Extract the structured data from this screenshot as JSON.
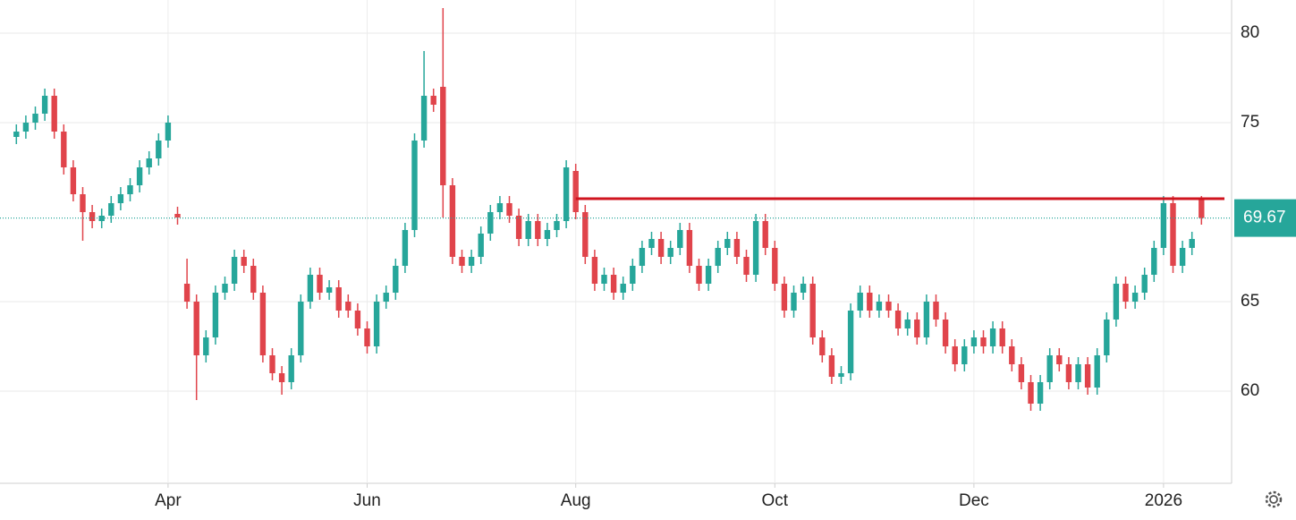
{
  "chart_data": {
    "type": "candlestick",
    "categories": [
      null,
      null,
      null,
      null,
      null,
      null,
      null,
      null,
      null,
      null,
      null,
      null,
      null,
      null,
      null,
      null,
      "Apr",
      null,
      null,
      null,
      null,
      null,
      null,
      null,
      null,
      null,
      null,
      null,
      null,
      null,
      null,
      null,
      null,
      null,
      null,
      null,
      null,
      "Jun",
      null,
      null,
      null,
      null,
      null,
      null,
      null,
      null,
      null,
      null,
      null,
      null,
      null,
      null,
      null,
      null,
      null,
      null,
      null,
      null,
      null,
      "Aug",
      null,
      null,
      null,
      null,
      null,
      null,
      null,
      null,
      null,
      null,
      null,
      null,
      null,
      null,
      null,
      null,
      null,
      null,
      null,
      null,
      "Oct",
      null,
      null,
      null,
      null,
      null,
      null,
      null,
      null,
      null,
      null,
      null,
      null,
      null,
      null,
      null,
      null,
      null,
      null,
      null,
      null,
      "Dec",
      null,
      null,
      null,
      null,
      null,
      null,
      null,
      null,
      null,
      null,
      null,
      null,
      null,
      null,
      null,
      null,
      null,
      null,
      null,
      "2026",
      null,
      null,
      null,
      null
    ],
    "open": [
      74.2,
      74.5,
      75,
      75.5,
      76.5,
      74.5,
      72.5,
      71,
      70,
      69.5,
      69.8,
      70.5,
      71,
      71.5,
      72.5,
      73,
      74,
      69.9,
      66,
      65,
      62,
      63,
      65.5,
      66,
      67.5,
      67,
      65.5,
      62,
      61,
      60.5,
      62,
      65,
      66.5,
      65.5,
      65.8,
      65,
      64.5,
      63.5,
      62.5,
      65,
      65.5,
      67,
      69,
      74,
      76.5,
      77,
      71.5,
      67.5,
      67,
      67.5,
      68.8,
      70,
      70.5,
      69.8,
      68.5,
      69.5,
      68.5,
      69,
      69.5,
      72.3,
      70,
      67.5,
      66,
      66.5,
      65.5,
      66,
      67,
      68,
      68.5,
      67.5,
      68,
      69,
      67,
      66,
      67,
      68,
      68.5,
      67.5,
      66.5,
      69.5,
      68,
      66,
      64.5,
      65.5,
      66,
      63,
      62,
      60.8,
      61,
      64.5,
      65.5,
      64.5,
      65,
      64.5,
      63.5,
      64,
      63,
      65,
      64,
      62.5,
      61.5,
      62.5,
      63,
      62.5,
      63.5,
      62.5,
      61.5,
      60.5,
      59.3,
      60.5,
      62,
      61.5,
      60.5,
      61.5,
      60.2,
      62,
      64,
      66,
      65,
      65.5,
      66.5,
      68,
      70.5,
      67,
      68,
      70.8
    ],
    "high": [
      74.9,
      75.4,
      75.9,
      76.9,
      76.9,
      74.9,
      72.9,
      71.4,
      70.4,
      70.2,
      70.9,
      71.4,
      71.9,
      72.9,
      73.4,
      74.4,
      75.4,
      70.3,
      67.4,
      65.4,
      63.4,
      65.9,
      66.4,
      67.9,
      67.9,
      67.4,
      65.9,
      62.4,
      61.4,
      62.4,
      65.4,
      66.9,
      66.9,
      66.2,
      66.2,
      65.4,
      64.9,
      63.9,
      65.4,
      65.9,
      67.4,
      69.4,
      74.4,
      79,
      76.9,
      81.4,
      71.9,
      67.9,
      67.9,
      69.2,
      70.4,
      70.9,
      70.9,
      70.2,
      69.9,
      69.9,
      69.4,
      69.9,
      72.9,
      72.7,
      70.4,
      67.9,
      66.9,
      66.9,
      66.4,
      67.4,
      68.4,
      68.9,
      68.9,
      68.4,
      69.4,
      69.4,
      67.4,
      67.4,
      68.4,
      68.9,
      68.9,
      67.9,
      69.9,
      69.9,
      68.4,
      66.4,
      65.9,
      66.4,
      66.4,
      63.4,
      62.4,
      61.4,
      64.9,
      65.9,
      65.9,
      65.4,
      65.4,
      64.9,
      64.4,
      64.4,
      65.4,
      65.4,
      64.4,
      62.9,
      62.9,
      63.4,
      63.4,
      63.9,
      63.9,
      62.9,
      61.9,
      60.9,
      60.9,
      62.4,
      62.4,
      61.9,
      61.9,
      61.9,
      62.4,
      64.4,
      66.4,
      66.4,
      65.9,
      66.9,
      68.4,
      70.9,
      70.9,
      68.4,
      68.9,
      70.9
    ],
    "low": [
      73.8,
      74.1,
      74.6,
      75.1,
      74.1,
      72.1,
      70.6,
      68.4,
      69.1,
      69.1,
      69.4,
      70.1,
      70.6,
      71.1,
      72.1,
      72.6,
      73.6,
      69.3,
      64.6,
      59.5,
      61.6,
      62.6,
      65.1,
      65.6,
      66.6,
      65.1,
      61.6,
      60.6,
      59.8,
      60.1,
      61.6,
      64.6,
      65.1,
      65.1,
      64.1,
      64.1,
      63.1,
      62.1,
      62.1,
      64.6,
      65.1,
      66.6,
      68.6,
      73.6,
      75.6,
      69.7,
      67.1,
      66.6,
      66.6,
      67.1,
      68.4,
      69.6,
      69.4,
      68.1,
      68.1,
      68.1,
      68.1,
      68.6,
      69.1,
      69.6,
      67.1,
      65.6,
      65.6,
      65.1,
      65.1,
      65.6,
      66.6,
      67.6,
      67.1,
      67.1,
      67.6,
      66.6,
      65.6,
      65.6,
      66.6,
      67.6,
      67.1,
      66.1,
      66.1,
      67.6,
      65.6,
      64.1,
      64.1,
      65.1,
      62.6,
      61.6,
      60.4,
      60.4,
      60.6,
      64.1,
      64.1,
      64.1,
      64.1,
      63.1,
      63.1,
      62.6,
      62.6,
      63.6,
      62.1,
      61.1,
      61.1,
      62.1,
      62.1,
      62.1,
      62.1,
      61.1,
      60.1,
      58.9,
      58.9,
      60.1,
      61.1,
      60.1,
      60.1,
      59.8,
      59.8,
      61.6,
      63.6,
      64.6,
      64.6,
      65.1,
      66.1,
      67.6,
      66.6,
      66.6,
      67.6,
      69.3
    ],
    "close": [
      74.5,
      75,
      75.5,
      76.5,
      74.5,
      72.5,
      71,
      70,
      69.5,
      69.8,
      70.5,
      71,
      71.5,
      72.5,
      73,
      74,
      75,
      69.7,
      65,
      62,
      63,
      65.5,
      66,
      67.5,
      67,
      65.5,
      62,
      61,
      60.5,
      62,
      65,
      66.5,
      65.5,
      65.8,
      64.5,
      64.5,
      63.5,
      62.5,
      65,
      65.5,
      67,
      69,
      74,
      76.5,
      76,
      71.5,
      67.5,
      67,
      67.5,
      68.8,
      70,
      70.5,
      69.8,
      68.5,
      69.5,
      68.5,
      69,
      69.5,
      72.5,
      70,
      67.5,
      66,
      66.5,
      65.5,
      66,
      67,
      68,
      68.5,
      67.5,
      68,
      69,
      67,
      66,
      67,
      68,
      68.5,
      67.5,
      66.5,
      69.5,
      68,
      66,
      64.5,
      65.5,
      66,
      63,
      62,
      60.8,
      61,
      64.5,
      65.5,
      64.5,
      65,
      64.5,
      63.5,
      64,
      63,
      65,
      64,
      62.5,
      61.5,
      62.5,
      63,
      62.5,
      63.5,
      62.5,
      61.5,
      60.5,
      59.3,
      60.5,
      62,
      61.5,
      60.5,
      61.5,
      60.2,
      62,
      64,
      66,
      65,
      65.5,
      66.5,
      68,
      70.5,
      67,
      68,
      68.5,
      69.67
    ],
    "up_color": "#26a69a",
    "down_color": "#e0444b",
    "ylim": [
      54.85,
      81.85
    ],
    "yticks": [
      60,
      65,
      75,
      80
    ],
    "grid": true,
    "level_line": {
      "value": 70.75,
      "start_index": 59,
      "color": "#d0141f"
    },
    "last_price": 69.67,
    "last_price_color": "#26a69a"
  }
}
